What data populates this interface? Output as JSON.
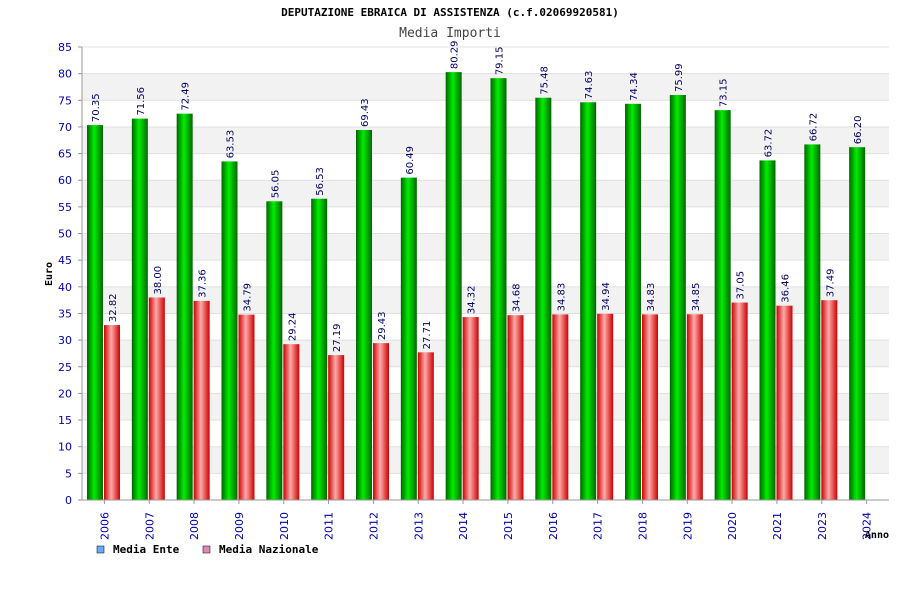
{
  "chart_data": {
    "type": "bar",
    "title": "DEPUTAZIONE EBRAICA DI ASSISTENZA (c.f.02069920581)",
    "subtitle": "Media Importi",
    "ylabel": "Euro",
    "xlabel": "Anno",
    "ylim": [
      0,
      85
    ],
    "ytick_step": 5,
    "grid": true,
    "legend_position": "bottom-left",
    "categories": [
      "2006",
      "2007",
      "2008",
      "2009",
      "2010",
      "2011",
      "2012",
      "2013",
      "2014",
      "2015",
      "2016",
      "2017",
      "2018",
      "2019",
      "2020",
      "2021",
      "2023",
      "2024"
    ],
    "series": [
      {
        "name": "Media Ente",
        "color": "#00aa00",
        "legend_color": "#66aaff",
        "values": [
          70.35,
          71.56,
          72.49,
          63.53,
          56.05,
          56.53,
          69.43,
          60.49,
          80.29,
          79.15,
          75.48,
          74.63,
          74.34,
          75.99,
          73.15,
          63.72,
          66.72,
          66.2
        ],
        "labels": [
          "70.35",
          "71.56",
          "72.49",
          "63.53",
          "56.05",
          "56.53",
          "69.43",
          "60.49",
          "80.29",
          "79.15",
          "75.48",
          "74.63",
          "74.34",
          "75.99",
          "73.15",
          "63.72",
          "66.72",
          "66.20"
        ]
      },
      {
        "name": "Media Nazionale",
        "color": "#ee2222",
        "legend_color": "#dd88bb",
        "values": [
          32.82,
          38.0,
          37.36,
          34.79,
          29.24,
          27.19,
          29.43,
          27.71,
          34.32,
          34.68,
          34.83,
          34.94,
          34.83,
          34.85,
          37.05,
          36.46,
          37.49,
          null
        ],
        "labels": [
          "32.82",
          "38.00",
          "37.36",
          "34.79",
          "29.24",
          "27.19",
          "29.43",
          "27.71",
          "34.32",
          "34.68",
          "34.83",
          "34.94",
          "34.83",
          "34.85",
          "37.05",
          "36.46",
          "37.49",
          null
        ]
      }
    ]
  }
}
